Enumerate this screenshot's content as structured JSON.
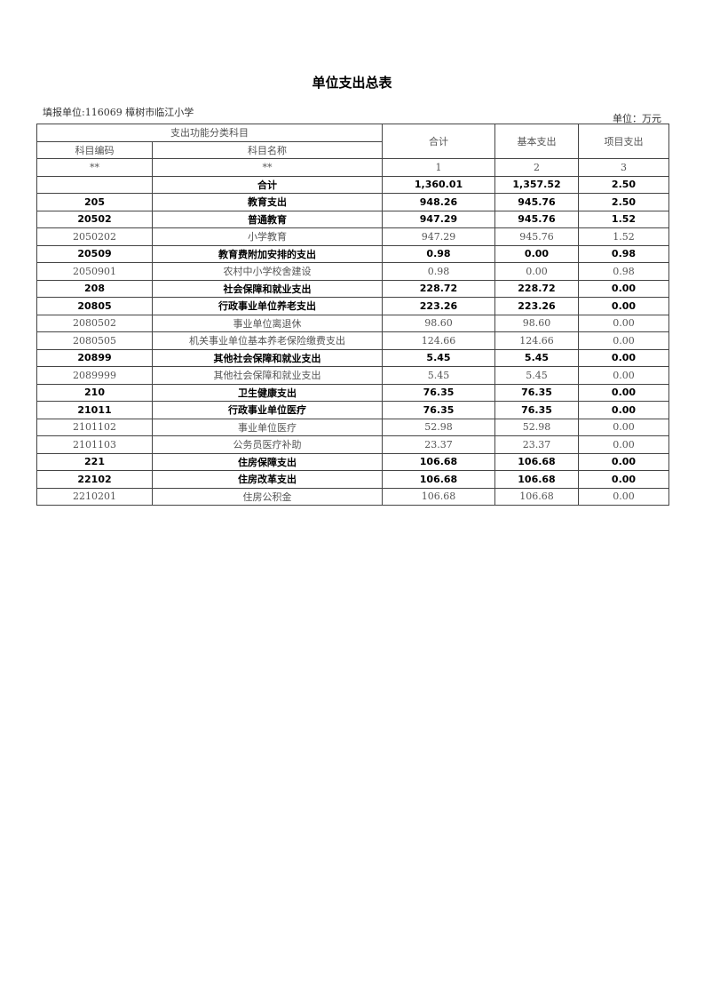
{
  "title": "单位支出总表",
  "org": "填报单位:116069 樟树市临江小学",
  "unit": "单位：万元",
  "header": {
    "group": "支出功能分类科目",
    "code": "科目编码",
    "name": "科目名称",
    "total": "合计",
    "basic": "基本支出",
    "project": "项目支出"
  },
  "index_row": [
    "**",
    "**",
    "1",
    "2",
    "3"
  ],
  "rows": [
    {
      "code": "",
      "name": "合计",
      "total": "1,360.01",
      "basic": "1,357.52",
      "project": "2.50",
      "bold": true
    },
    {
      "code": "205",
      "name": "教育支出",
      "total": "948.26",
      "basic": "945.76",
      "project": "2.50",
      "bold": true
    },
    {
      "code": "20502",
      "name": "普通教育",
      "total": "947.29",
      "basic": "945.76",
      "project": "1.52",
      "bold": true
    },
    {
      "code": "2050202",
      "name": "小学教育",
      "total": "947.29",
      "basic": "945.76",
      "project": "1.52",
      "bold": false
    },
    {
      "code": "20509",
      "name": "教育费附加安排的支出",
      "total": "0.98",
      "basic": "0.00",
      "project": "0.98",
      "bold": true
    },
    {
      "code": "2050901",
      "name": "农村中小学校舍建设",
      "total": "0.98",
      "basic": "0.00",
      "project": "0.98",
      "bold": false
    },
    {
      "code": "208",
      "name": "社会保障和就业支出",
      "total": "228.72",
      "basic": "228.72",
      "project": "0.00",
      "bold": true
    },
    {
      "code": "20805",
      "name": "行政事业单位养老支出",
      "total": "223.26",
      "basic": "223.26",
      "project": "0.00",
      "bold": true
    },
    {
      "code": "2080502",
      "name": "事业单位离退休",
      "total": "98.60",
      "basic": "98.60",
      "project": "0.00",
      "bold": false
    },
    {
      "code": "2080505",
      "name": "机关事业单位基本养老保险缴费支出",
      "total": "124.66",
      "basic": "124.66",
      "project": "0.00",
      "bold": false
    },
    {
      "code": "20899",
      "name": "其他社会保障和就业支出",
      "total": "5.45",
      "basic": "5.45",
      "project": "0.00",
      "bold": true
    },
    {
      "code": "2089999",
      "name": "其他社会保障和就业支出",
      "total": "5.45",
      "basic": "5.45",
      "project": "0.00",
      "bold": false
    },
    {
      "code": "210",
      "name": "卫生健康支出",
      "total": "76.35",
      "basic": "76.35",
      "project": "0.00",
      "bold": true
    },
    {
      "code": "21011",
      "name": "行政事业单位医疗",
      "total": "76.35",
      "basic": "76.35",
      "project": "0.00",
      "bold": true
    },
    {
      "code": "2101102",
      "name": "事业单位医疗",
      "total": "52.98",
      "basic": "52.98",
      "project": "0.00",
      "bold": false
    },
    {
      "code": "2101103",
      "name": "公务员医疗补助",
      "total": "23.37",
      "basic": "23.37",
      "project": "0.00",
      "bold": false
    },
    {
      "code": "221",
      "name": "住房保障支出",
      "total": "106.68",
      "basic": "106.68",
      "project": "0.00",
      "bold": true
    },
    {
      "code": "22102",
      "name": "住房改革支出",
      "total": "106.68",
      "basic": "106.68",
      "project": "0.00",
      "bold": true
    },
    {
      "code": "2210201",
      "name": "住房公积金",
      "total": "106.68",
      "basic": "106.68",
      "project": "0.00",
      "bold": false
    }
  ]
}
